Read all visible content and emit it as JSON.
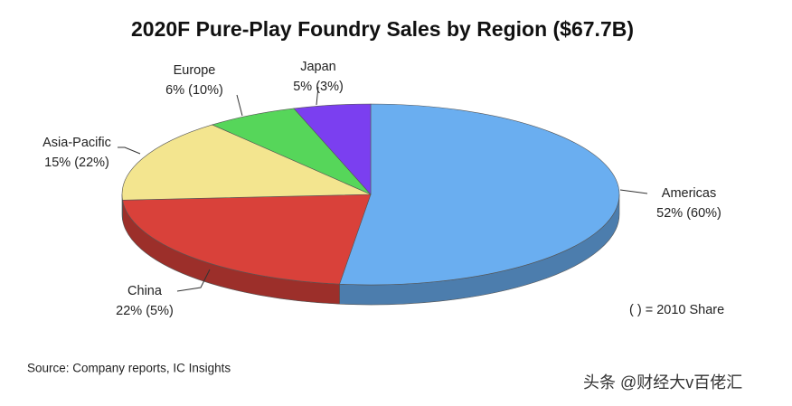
{
  "chart_data": {
    "type": "pie",
    "title": "2020F Pure-Play Foundry Sales by Region ($67.7B)",
    "categories": [
      "Americas",
      "China",
      "Asia-Pacific",
      "Europe",
      "Japan"
    ],
    "values": [
      52,
      22,
      15,
      6,
      5
    ],
    "value_labels": [
      "52%",
      "22%",
      "15%",
      "6%",
      "5%"
    ],
    "share_2010": [
      60,
      5,
      22,
      10,
      3
    ],
    "share_2010_labels": [
      "(60%)",
      "(5%)",
      "(22%)",
      "(10%)",
      "(3%)"
    ],
    "colors": [
      "#6aaef0",
      "#d9413a",
      "#f3e58f",
      "#56d65a",
      "#7b3ff0"
    ],
    "note": "( ) = 2010 Share",
    "source": "Source: Company reports, IC Insights"
  },
  "watermark": "头条 @财经大v百佬汇"
}
